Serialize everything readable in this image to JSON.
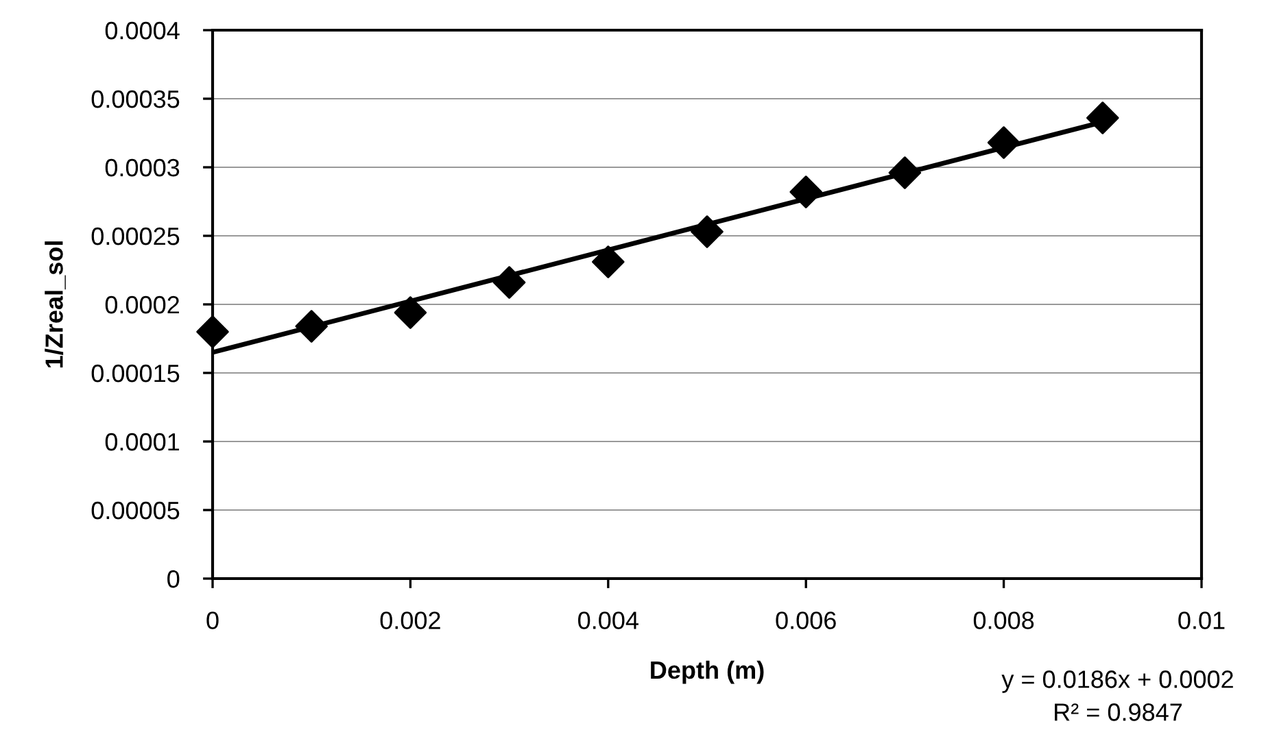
{
  "chart_data": {
    "type": "scatter",
    "xlabel": "Depth (m)",
    "ylabel": "1/Zreal_sol",
    "series": [
      {
        "color": "#000000",
        "marker": "diamond",
        "x": [
          0,
          0.001,
          0.002,
          0.003,
          0.004,
          0.005,
          0.006,
          0.007,
          0.008,
          0.009
        ],
        "values": [
          0.00018,
          0.000184,
          0.000194,
          0.000216,
          0.000231,
          0.000253,
          0.000282,
          0.000296,
          0.000318,
          0.000336
        ]
      },
      {
        "type": "line",
        "color": "#000000",
        "marker": "none",
        "line_style": "solid",
        "x": [
          0,
          0.009
        ],
        "values": [
          0.000165,
          0.000333
        ]
      }
    ],
    "xlim": [
      0,
      0.01
    ],
    "xticks": [
      0,
      0.002,
      0.004,
      0.006,
      0.008,
      0.01
    ],
    "ylim": [
      0,
      0.0004
    ],
    "yticks": [
      0,
      {
        "value": 5e-05,
        "label": "0.00005"
      },
      0.0001,
      0.00015,
      0.0002,
      0.00025,
      0.0003,
      0.00035,
      0.0004
    ],
    "grid": "y",
    "annotations": [
      "y = 0.0186x + 0.0002",
      "R² = 0.9847"
    ]
  }
}
